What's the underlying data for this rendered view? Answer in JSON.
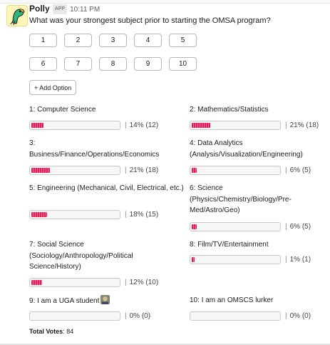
{
  "poll": {
    "bot_name": "Polly",
    "badge": "APP",
    "timestamp": "10:11 PM",
    "question": "What was your strongest subject prior to starting the OMSA program?",
    "option_buttons": [
      "1",
      "2",
      "3",
      "4",
      "5",
      "6",
      "7",
      "8",
      "9",
      "10"
    ],
    "add_option_label": "+ Add Option",
    "results": [
      {
        "num": "1",
        "label": "Computer Science",
        "stat": "14% (12)",
        "fraction": 0.14
      },
      {
        "num": "2",
        "label": "Mathematics/Statistics",
        "stat": "21% (18)",
        "fraction": 0.21
      },
      {
        "num": "3",
        "label": "Business/Finance/Operations/Economics",
        "stat": "21% (18)",
        "fraction": 0.21
      },
      {
        "num": "4",
        "label": "Data Analytics (Analysis/Visualization/Engineering)",
        "stat": "6% (5)",
        "fraction": 0.06
      },
      {
        "num": "5",
        "label": "Engineering (Mechanical, Civil, Electrical, etc.)",
        "stat": "18% (15)",
        "fraction": 0.18
      },
      {
        "num": "6",
        "label": "Science (Physics/Chemistry/Biology/Pre-Med/Astro/Geo)",
        "stat": "6% (5)",
        "fraction": 0.06
      },
      {
        "num": "7",
        "label": "Social Science (Sociology/Anthropology/Political Science/History)",
        "stat": "12% (10)",
        "fraction": 0.12
      },
      {
        "num": "8",
        "label": "Film/TV/Entertainment",
        "stat": "1% (1)",
        "fraction": 0.01
      },
      {
        "num": "9",
        "label": "I am a UGA student",
        "stat": "0% (0)",
        "fraction": 0.0
      },
      {
        "num": "10",
        "label": "I am an OMSCS lurker",
        "stat": "0% (0)",
        "fraction": 0.0
      }
    ],
    "total_label": "Total Votes",
    "total_value": "84",
    "colors": {
      "bar_fill": "#e01e5a",
      "bar_track": "#f6f6f6"
    },
    "icons": {
      "avatar": "parrot-avatar-icon",
      "voter_face": "person-face-icon"
    }
  }
}
